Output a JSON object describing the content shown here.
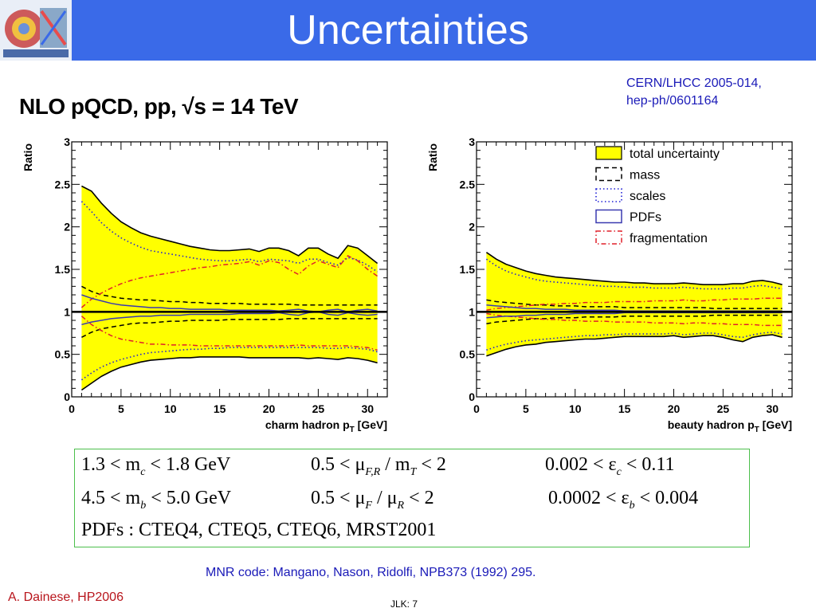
{
  "slide": {
    "title": "Uncertainties",
    "subtitle": "NLO pQCD, pp, √s = 14 TeV",
    "reference_line1": "CERN/LHCC 2005-014,",
    "reference_line2": "hep-ph/0601164",
    "mnr_note": "MNR code: Mangano, Nason, Ridolfi, NPB373 (1992) 295.",
    "author": "A. Dainese, HP2006",
    "page_label": "JLK: 7"
  },
  "parameters": {
    "row1": [
      "1.3 < m",
      "c",
      " < 1.8 GeV",
      "0.5 < μ",
      "F,R",
      " / m",
      "T",
      " < 2",
      "0.002 < ε",
      "c",
      " < 0.11"
    ],
    "row2": [
      "4.5 < m",
      "b",
      " < 5.0 GeV",
      "0.5 < μ",
      "F",
      " / μ",
      "R",
      " < 2",
      "0.0002 < ε",
      "b",
      " < 0.004"
    ],
    "row3": "PDFs : CTEQ4,  CTEQ5,  CTEQ6,  MRST2001"
  },
  "chart_data": [
    {
      "type": "line",
      "xlabel": "charm hadron p",
      "xlabel_sub": "T",
      "xlabel_unit": " [GeV]",
      "ylabel": "Ratio",
      "xlim": [
        0,
        32
      ],
      "ylim": [
        0,
        3
      ],
      "xticks": [
        "0",
        "5",
        "10",
        "15",
        "20",
        "25",
        "30"
      ],
      "yticks": [
        "0",
        "0.5",
        "1",
        "1.5",
        "2",
        "2.5",
        "3"
      ],
      "x": [
        1,
        2,
        3,
        4,
        5,
        6,
        7,
        8,
        9,
        10,
        11,
        12,
        13,
        14,
        15,
        16,
        17,
        18,
        19,
        20,
        21,
        22,
        23,
        24,
        25,
        26,
        27,
        28,
        29,
        30,
        31
      ],
      "series": [
        {
          "style": "total",
          "upper": [
            2.48,
            2.42,
            2.28,
            2.16,
            2.06,
            1.99,
            1.93,
            1.89,
            1.86,
            1.83,
            1.8,
            1.77,
            1.75,
            1.73,
            1.72,
            1.72,
            1.73,
            1.74,
            1.71,
            1.75,
            1.75,
            1.72,
            1.66,
            1.75,
            1.75,
            1.68,
            1.63,
            1.78,
            1.75,
            1.66,
            1.57
          ],
          "lower": [
            0.08,
            0.16,
            0.24,
            0.3,
            0.35,
            0.38,
            0.41,
            0.43,
            0.44,
            0.45,
            0.46,
            0.46,
            0.47,
            0.47,
            0.47,
            0.47,
            0.47,
            0.46,
            0.46,
            0.46,
            0.46,
            0.46,
            0.46,
            0.45,
            0.46,
            0.45,
            0.44,
            0.46,
            0.45,
            0.43,
            0.4
          ]
        },
        {
          "style": "mass",
          "upper": [
            1.3,
            1.24,
            1.2,
            1.18,
            1.16,
            1.15,
            1.14,
            1.14,
            1.13,
            1.12,
            1.12,
            1.11,
            1.11,
            1.1,
            1.1,
            1.1,
            1.1,
            1.09,
            1.09,
            1.09,
            1.09,
            1.09,
            1.08,
            1.08,
            1.08,
            1.08,
            1.08,
            1.08,
            1.08,
            1.08,
            1.08
          ],
          "lower": [
            0.7,
            0.76,
            0.8,
            0.82,
            0.84,
            0.86,
            0.87,
            0.87,
            0.88,
            0.89,
            0.89,
            0.9,
            0.9,
            0.9,
            0.9,
            0.91,
            0.91,
            0.91,
            0.91,
            0.91,
            0.91,
            0.92,
            0.92,
            0.92,
            0.92,
            0.92,
            0.92,
            0.92,
            0.92,
            0.92,
            0.92
          ]
        },
        {
          "style": "scales",
          "upper": [
            2.3,
            2.18,
            2.05,
            1.95,
            1.87,
            1.81,
            1.76,
            1.72,
            1.7,
            1.68,
            1.66,
            1.64,
            1.62,
            1.61,
            1.6,
            1.6,
            1.61,
            1.62,
            1.59,
            1.62,
            1.61,
            1.6,
            1.57,
            1.62,
            1.62,
            1.58,
            1.55,
            1.64,
            1.61,
            1.55,
            1.47
          ],
          "lower": [
            0.2,
            0.28,
            0.35,
            0.4,
            0.44,
            0.47,
            0.5,
            0.52,
            0.53,
            0.54,
            0.55,
            0.56,
            0.56,
            0.57,
            0.57,
            0.58,
            0.58,
            0.58,
            0.58,
            0.58,
            0.58,
            0.58,
            0.58,
            0.58,
            0.58,
            0.57,
            0.57,
            0.58,
            0.57,
            0.56,
            0.53
          ]
        },
        {
          "style": "pdfs",
          "upper": [
            1.2,
            1.16,
            1.13,
            1.1,
            1.08,
            1.07,
            1.06,
            1.05,
            1.05,
            1.04,
            1.04,
            1.03,
            1.03,
            1.03,
            1.03,
            1.02,
            1.02,
            1.02,
            1.02,
            1.02,
            1.01,
            1.02,
            1.03,
            1.01,
            1.0,
            1.02,
            1.03,
            1.0,
            1.02,
            1.03,
            1.01
          ],
          "lower": [
            0.85,
            0.88,
            0.9,
            0.92,
            0.93,
            0.94,
            0.95,
            0.95,
            0.96,
            0.96,
            0.96,
            0.97,
            0.97,
            0.97,
            0.97,
            0.97,
            0.98,
            0.98,
            0.98,
            0.98,
            0.99,
            0.97,
            0.96,
            0.99,
            1.0,
            0.97,
            0.96,
            0.99,
            0.97,
            0.96,
            0.97
          ]
        },
        {
          "style": "fragmentation",
          "upper": [
            1.05,
            1.15,
            1.22,
            1.28,
            1.33,
            1.37,
            1.4,
            1.42,
            1.44,
            1.46,
            1.48,
            1.5,
            1.52,
            1.53,
            1.55,
            1.56,
            1.57,
            1.59,
            1.55,
            1.6,
            1.58,
            1.5,
            1.44,
            1.54,
            1.6,
            1.56,
            1.52,
            1.66,
            1.6,
            1.5,
            1.42
          ],
          "lower": [
            0.95,
            0.85,
            0.78,
            0.72,
            0.68,
            0.66,
            0.64,
            0.62,
            0.62,
            0.61,
            0.61,
            0.61,
            0.6,
            0.6,
            0.6,
            0.6,
            0.6,
            0.6,
            0.6,
            0.6,
            0.6,
            0.6,
            0.61,
            0.6,
            0.6,
            0.6,
            0.6,
            0.6,
            0.59,
            0.58,
            0.55
          ]
        }
      ]
    },
    {
      "type": "line",
      "xlabel": "beauty hadron p",
      "xlabel_sub": "T",
      "xlabel_unit": " [GeV]",
      "ylabel": "Ratio",
      "xlim": [
        0,
        32
      ],
      "ylim": [
        0,
        3
      ],
      "xticks": [
        "0",
        "5",
        "10",
        "15",
        "20",
        "25",
        "30"
      ],
      "yticks": [
        "0",
        "0.5",
        "1",
        "1.5",
        "2",
        "2.5",
        "3"
      ],
      "legend": [
        {
          "label": "total uncertainty",
          "style": "total"
        },
        {
          "label": "mass",
          "style": "mass"
        },
        {
          "label": "scales",
          "style": "scales"
        },
        {
          "label": "PDFs",
          "style": "pdfs"
        },
        {
          "label": "fragmentation",
          "style": "fragmentation"
        }
      ],
      "legend_position": "top-right",
      "x": [
        1,
        2,
        3,
        4,
        5,
        6,
        7,
        8,
        9,
        10,
        11,
        12,
        13,
        14,
        15,
        16,
        17,
        18,
        19,
        20,
        21,
        22,
        23,
        24,
        25,
        26,
        27,
        28,
        29,
        30,
        31
      ],
      "series": [
        {
          "style": "total",
          "upper": [
            1.7,
            1.62,
            1.56,
            1.52,
            1.48,
            1.45,
            1.43,
            1.41,
            1.4,
            1.39,
            1.38,
            1.37,
            1.36,
            1.35,
            1.35,
            1.34,
            1.34,
            1.33,
            1.33,
            1.33,
            1.34,
            1.33,
            1.32,
            1.32,
            1.32,
            1.33,
            1.33,
            1.36,
            1.37,
            1.35,
            1.32
          ],
          "lower": [
            0.48,
            0.52,
            0.56,
            0.59,
            0.61,
            0.62,
            0.64,
            0.65,
            0.66,
            0.67,
            0.68,
            0.68,
            0.69,
            0.7,
            0.71,
            0.71,
            0.71,
            0.71,
            0.71,
            0.72,
            0.7,
            0.71,
            0.72,
            0.72,
            0.7,
            0.67,
            0.65,
            0.7,
            0.72,
            0.73,
            0.7
          ]
        },
        {
          "style": "mass",
          "upper": [
            1.14,
            1.12,
            1.11,
            1.1,
            1.09,
            1.08,
            1.08,
            1.07,
            1.07,
            1.07,
            1.06,
            1.06,
            1.06,
            1.06,
            1.05,
            1.05,
            1.05,
            1.05,
            1.05,
            1.05,
            1.05,
            1.05,
            1.05,
            1.04,
            1.04,
            1.04,
            1.04,
            1.04,
            1.04,
            1.04,
            1.04
          ],
          "lower": [
            0.86,
            0.88,
            0.89,
            0.9,
            0.91,
            0.92,
            0.92,
            0.93,
            0.93,
            0.93,
            0.94,
            0.94,
            0.94,
            0.94,
            0.95,
            0.95,
            0.95,
            0.95,
            0.95,
            0.95,
            0.95,
            0.95,
            0.95,
            0.96,
            0.96,
            0.96,
            0.96,
            0.96,
            0.96,
            0.96,
            0.96
          ]
        },
        {
          "style": "scales",
          "upper": [
            1.62,
            1.54,
            1.48,
            1.44,
            1.41,
            1.38,
            1.36,
            1.35,
            1.34,
            1.33,
            1.32,
            1.31,
            1.3,
            1.3,
            1.29,
            1.29,
            1.29,
            1.28,
            1.28,
            1.28,
            1.29,
            1.28,
            1.27,
            1.27,
            1.27,
            1.28,
            1.28,
            1.3,
            1.31,
            1.29,
            1.27
          ],
          "lower": [
            0.55,
            0.59,
            0.62,
            0.64,
            0.66,
            0.67,
            0.68,
            0.69,
            0.7,
            0.71,
            0.72,
            0.72,
            0.73,
            0.73,
            0.74,
            0.74,
            0.74,
            0.74,
            0.74,
            0.75,
            0.73,
            0.74,
            0.75,
            0.75,
            0.73,
            0.71,
            0.7,
            0.73,
            0.75,
            0.76,
            0.74
          ]
        },
        {
          "style": "pdfs",
          "upper": [
            1.08,
            1.07,
            1.06,
            1.05,
            1.04,
            1.04,
            1.03,
            1.03,
            1.03,
            1.02,
            1.02,
            1.02,
            1.02,
            1.02,
            1.01,
            1.01,
            1.01,
            1.01,
            1.01,
            1.01,
            1.01,
            1.01,
            1.01,
            1.01,
            1.01,
            1.01,
            1.01,
            1.01,
            1.01,
            1.01,
            1.01
          ],
          "lower": [
            0.93,
            0.94,
            0.95,
            0.95,
            0.96,
            0.96,
            0.97,
            0.97,
            0.97,
            0.98,
            0.98,
            0.98,
            0.98,
            0.98,
            0.99,
            0.99,
            0.99,
            0.99,
            0.99,
            0.99,
            0.99,
            0.99,
            0.99,
            0.99,
            0.99,
            0.99,
            0.99,
            0.99,
            0.99,
            0.99,
            0.99
          ]
        },
        {
          "style": "fragmentation",
          "upper": [
            1.02,
            1.04,
            1.05,
            1.06,
            1.07,
            1.08,
            1.09,
            1.09,
            1.1,
            1.1,
            1.11,
            1.11,
            1.11,
            1.12,
            1.12,
            1.12,
            1.12,
            1.13,
            1.13,
            1.13,
            1.14,
            1.13,
            1.13,
            1.14,
            1.14,
            1.15,
            1.15,
            1.15,
            1.16,
            1.16,
            1.16
          ],
          "lower": [
            0.98,
            0.96,
            0.95,
            0.94,
            0.93,
            0.92,
            0.91,
            0.91,
            0.9,
            0.9,
            0.89,
            0.89,
            0.89,
            0.88,
            0.88,
            0.88,
            0.88,
            0.87,
            0.87,
            0.87,
            0.86,
            0.87,
            0.87,
            0.86,
            0.86,
            0.85,
            0.85,
            0.85,
            0.84,
            0.84,
            0.84
          ]
        }
      ]
    }
  ],
  "colors": {
    "header": "#3a6ae8",
    "band_fill": "#ffff00",
    "total_line": "#000000",
    "mass_line": "#000000",
    "scales_line": "#1f1fd6",
    "pdfs_line": "#3a3ab0",
    "fragmentation_line": "#e0202a",
    "reference_text": "#1a1ab8",
    "author_text": "#b8151c",
    "param_box_border": "#4cbf4c"
  }
}
